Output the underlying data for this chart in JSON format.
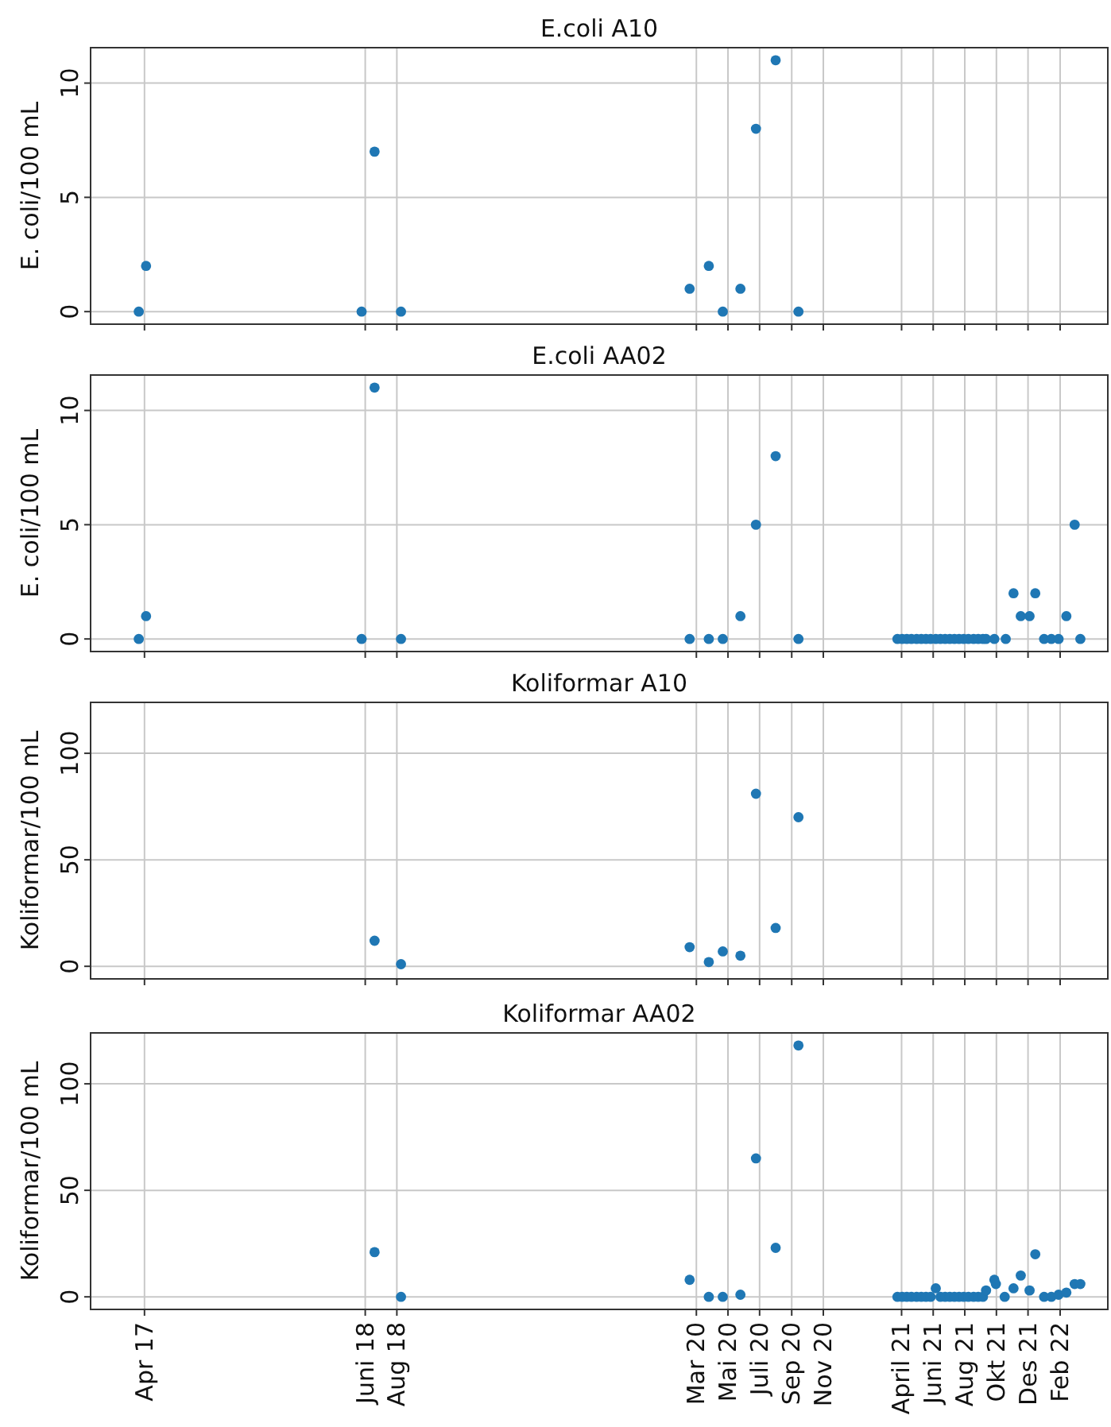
{
  "chart_data": [
    {
      "type": "scatter",
      "title": "E.coli A10",
      "ylabel": "E. coli/100 mL",
      "color": "#1f77b4",
      "marker": "circle",
      "grid": true,
      "tick_labels": "y",
      "xlim": [
        "2016-12-18",
        "2022-05-04"
      ],
      "xticks": [
        {
          "value": "2017-04-01",
          "label": null
        },
        {
          "value": "2018-06-01",
          "label": null
        },
        {
          "value": "2018-08-01",
          "label": null
        },
        {
          "value": "2020-03-01",
          "label": null
        },
        {
          "value": "2020-05-01",
          "label": null
        },
        {
          "value": "2020-07-01",
          "label": null
        },
        {
          "value": "2020-09-01",
          "label": null
        },
        {
          "value": "2020-11-01",
          "label": null
        },
        {
          "value": "2021-04-01",
          "label": null
        },
        {
          "value": "2021-06-01",
          "label": null
        },
        {
          "value": "2021-08-01",
          "label": null
        },
        {
          "value": "2021-10-01",
          "label": null
        },
        {
          "value": "2021-12-01",
          "label": null
        },
        {
          "value": "2022-02-01",
          "label": null
        }
      ],
      "ylim": [
        -0.55,
        11.55
      ],
      "yticks": [
        0,
        5,
        10
      ],
      "x": [
        "2017-03-21",
        "2017-04-04",
        "2018-05-25",
        "2018-06-19",
        "2018-08-09",
        "2020-02-17",
        "2020-03-25",
        "2020-04-21",
        "2020-05-25",
        "2020-06-24",
        "2020-08-01",
        "2020-09-14"
      ],
      "values": [
        0,
        2,
        0,
        7,
        0,
        1,
        2,
        0,
        1,
        8,
        11,
        0
      ]
    },
    {
      "type": "scatter",
      "title": "E.coli AA02",
      "ylabel": "E. coli/100 mL",
      "color": "#1f77b4",
      "marker": "circle",
      "grid": true,
      "tick_labels": "y",
      "xlim": [
        "2016-12-18",
        "2022-05-04"
      ],
      "xticks": [
        {
          "value": "2017-04-01",
          "label": null
        },
        {
          "value": "2018-06-01",
          "label": null
        },
        {
          "value": "2018-08-01",
          "label": null
        },
        {
          "value": "2020-03-01",
          "label": null
        },
        {
          "value": "2020-05-01",
          "label": null
        },
        {
          "value": "2020-07-01",
          "label": null
        },
        {
          "value": "2020-09-01",
          "label": null
        },
        {
          "value": "2020-11-01",
          "label": null
        },
        {
          "value": "2021-04-01",
          "label": null
        },
        {
          "value": "2021-06-01",
          "label": null
        },
        {
          "value": "2021-08-01",
          "label": null
        },
        {
          "value": "2021-10-01",
          "label": null
        },
        {
          "value": "2021-12-01",
          "label": null
        },
        {
          "value": "2022-02-01",
          "label": null
        }
      ],
      "ylim": [
        -0.55,
        11.55
      ],
      "yticks": [
        0,
        5,
        10
      ],
      "x": [
        "2017-03-21",
        "2017-04-04",
        "2018-05-25",
        "2018-06-19",
        "2018-08-09",
        "2020-02-17",
        "2020-03-25",
        "2020-04-21",
        "2020-05-25",
        "2020-06-24",
        "2020-08-01",
        "2020-09-14",
        "2021-03-24",
        "2021-04-02",
        "2021-04-11",
        "2021-04-20",
        "2021-04-30",
        "2021-05-09",
        "2021-05-18",
        "2021-05-27",
        "2021-06-06",
        "2021-06-15",
        "2021-06-24",
        "2021-07-03",
        "2021-07-12",
        "2021-07-21",
        "2021-07-30",
        "2021-08-08",
        "2021-08-18",
        "2021-08-27",
        "2021-09-05",
        "2021-09-11",
        "2021-09-27",
        "2021-10-19",
        "2021-11-03",
        "2021-11-17",
        "2021-12-04",
        "2021-12-15",
        "2022-01-01",
        "2022-01-15",
        "2022-01-29",
        "2022-02-13",
        "2022-03-01",
        "2022-03-12"
      ],
      "values": [
        0,
        1,
        0,
        11,
        0,
        0,
        0,
        0,
        1,
        5,
        8,
        0,
        0,
        0,
        0,
        0,
        0,
        0,
        0,
        0,
        0,
        0,
        0,
        0,
        0,
        0,
        0,
        0,
        0,
        0,
        0,
        0,
        0,
        0,
        2,
        1,
        1,
        2,
        0,
        0,
        0,
        1,
        5,
        0
      ]
    },
    {
      "type": "scatter",
      "title": "Koliformar A10",
      "ylabel": "Koliformar/100 mL",
      "color": "#1f77b4",
      "marker": "circle",
      "grid": true,
      "tick_labels": "y",
      "xlim": [
        "2016-12-18",
        "2022-05-04"
      ],
      "xticks": [
        {
          "value": "2017-04-01",
          "label": null
        },
        {
          "value": "2018-06-01",
          "label": null
        },
        {
          "value": "2018-08-01",
          "label": null
        },
        {
          "value": "2020-03-01",
          "label": null
        },
        {
          "value": "2020-05-01",
          "label": null
        },
        {
          "value": "2020-07-01",
          "label": null
        },
        {
          "value": "2020-09-01",
          "label": null
        },
        {
          "value": "2020-11-01",
          "label": null
        },
        {
          "value": "2021-04-01",
          "label": null
        },
        {
          "value": "2021-06-01",
          "label": null
        },
        {
          "value": "2021-08-01",
          "label": null
        },
        {
          "value": "2021-10-01",
          "label": null
        },
        {
          "value": "2021-12-01",
          "label": null
        },
        {
          "value": "2022-02-01",
          "label": null
        }
      ],
      "ylim": [
        -5.9,
        123.9
      ],
      "yticks": [
        0,
        50,
        100
      ],
      "x": [
        "2018-06-19",
        "2018-08-09",
        "2020-02-17",
        "2020-03-25",
        "2020-04-21",
        "2020-05-25",
        "2020-06-24",
        "2020-08-01",
        "2020-09-14"
      ],
      "values": [
        12,
        1,
        9,
        2,
        7,
        5,
        81,
        18,
        70
      ]
    },
    {
      "type": "scatter",
      "title": "Koliformar AA02",
      "ylabel": "Koliformar/100 mL",
      "color": "#1f77b4",
      "marker": "circle",
      "grid": true,
      "xlim": [
        "2016-12-18",
        "2022-05-04"
      ],
      "xticks": [
        {
          "value": "2017-04-01",
          "label": "Apr 17"
        },
        {
          "value": "2018-06-01",
          "label": "Juni 18"
        },
        {
          "value": "2018-08-01",
          "label": "Aug 18"
        },
        {
          "value": "2020-03-01",
          "label": "Mar 20"
        },
        {
          "value": "2020-05-01",
          "label": "Mai 20"
        },
        {
          "value": "2020-07-01",
          "label": "Juli 20"
        },
        {
          "value": "2020-09-01",
          "label": "Sep 20"
        },
        {
          "value": "2020-11-01",
          "label": "Nov 20"
        },
        {
          "value": "2021-04-01",
          "label": "April 21"
        },
        {
          "value": "2021-06-01",
          "label": "Juni 21"
        },
        {
          "value": "2021-08-01",
          "label": "Aug 21"
        },
        {
          "value": "2021-10-01",
          "label": "Okt 21"
        },
        {
          "value": "2021-12-01",
          "label": "Des 21"
        },
        {
          "value": "2022-02-01",
          "label": "Feb 22"
        }
      ],
      "ylim": [
        -5.9,
        123.9
      ],
      "yticks": [
        0,
        50,
        100
      ],
      "x": [
        "2018-06-19",
        "2018-08-09",
        "2020-02-17",
        "2020-03-25",
        "2020-04-21",
        "2020-05-25",
        "2020-06-24",
        "2020-08-01",
        "2020-09-14",
        "2021-03-24",
        "2021-04-02",
        "2021-04-11",
        "2021-04-20",
        "2021-04-30",
        "2021-05-09",
        "2021-05-18",
        "2021-05-27",
        "2021-06-06",
        "2021-06-15",
        "2021-06-24",
        "2021-07-03",
        "2021-07-12",
        "2021-07-21",
        "2021-07-30",
        "2021-08-08",
        "2021-08-18",
        "2021-08-27",
        "2021-09-05",
        "2021-09-11",
        "2021-09-27",
        "2021-09-30",
        "2021-10-17",
        "2021-11-03",
        "2021-11-17",
        "2021-12-04",
        "2021-12-15",
        "2022-01-01",
        "2022-01-15",
        "2022-01-29",
        "2022-02-13",
        "2022-03-01",
        "2022-03-12"
      ],
      "values": [
        21,
        0,
        8,
        0,
        0,
        1,
        65,
        23,
        118,
        0,
        0,
        0,
        0,
        0,
        0,
        0,
        0,
        4,
        0,
        0,
        0,
        0,
        0,
        0,
        0,
        0,
        0,
        0,
        3,
        8,
        6,
        0,
        4,
        10,
        3,
        20,
        0,
        0,
        1,
        2,
        6,
        6
      ]
    }
  ]
}
